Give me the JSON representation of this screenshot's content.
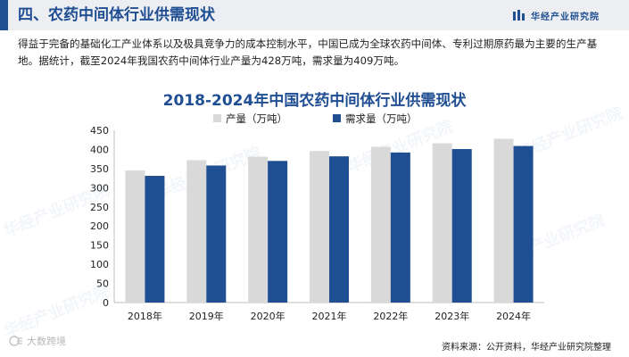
{
  "header": {
    "title": "四、农药中间体行业供需现状",
    "brand_name": "华经产业研究院"
  },
  "intro": {
    "text": "得益于完备的基础化工产业体系以及极具竞争力的成本控制水平，中国已成为全球农药中间体、专利过期原药最为主要的生产基地。据统计，截至2024年我国农药中间体行业产量为428万吨，需求量为409万吨。"
  },
  "chart_data": {
    "type": "bar",
    "title": "2018-2024年中国农药中间体行业供需现状",
    "categories": [
      "2018年",
      "2019年",
      "2020年",
      "2021年",
      "2022年",
      "2023年",
      "2024年"
    ],
    "series": [
      {
        "name": "产量（万吨）",
        "color": "#d9d9d9",
        "values": [
          345,
          372,
          381,
          396,
          407,
          416,
          428
        ]
      },
      {
        "name": "需求量（万吨）",
        "color": "#1f4e92",
        "values": [
          331,
          358,
          370,
          382,
          392,
          401,
          409
        ]
      }
    ],
    "ylim": [
      0,
      450
    ],
    "yticks": [
      0,
      50,
      100,
      150,
      200,
      250,
      300,
      350,
      400,
      450
    ],
    "xlabel": "",
    "ylabel": "",
    "legend": "top-center",
    "grid": false
  },
  "footer": {
    "source": "资料来源：公开资料，华经产业研究院整理",
    "stamp": "大数跨境"
  },
  "watermark": "华经产业研究院"
}
